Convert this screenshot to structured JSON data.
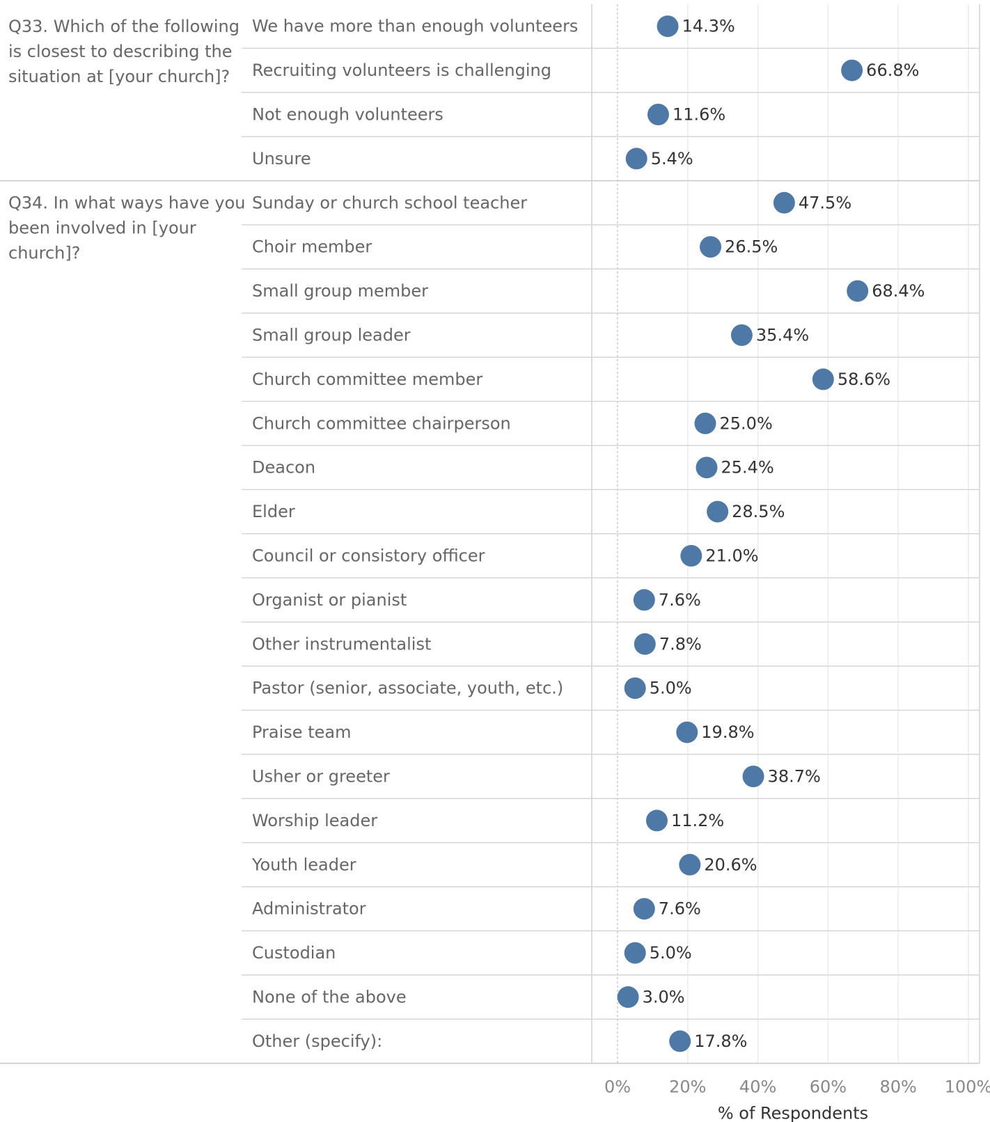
{
  "chart_data": {
    "type": "scatter",
    "orientation": "horizontal dot plot",
    "xlabel": "% of Respondents",
    "xlim": [
      0,
      100
    ],
    "x_ticks": [
      "0%",
      "20%",
      "40%",
      "60%",
      "80%",
      "100%"
    ],
    "grid": true,
    "marker_color": "#4E79A7",
    "groups": [
      {
        "question": "Q33. Which of the following is closest to describing the situation at [your church]?",
        "question_lines": [
          "Q33. Which of the following",
          "is closest to describing the",
          "situation at [your church]?"
        ],
        "categories": [
          "We have more than enough volunteers",
          "Recruiting volunteers is challenging",
          "Not enough volunteers",
          "Unsure"
        ],
        "values": [
          14.3,
          66.8,
          11.6,
          5.4
        ],
        "value_labels": [
          "14.3%",
          "66.8%",
          "11.6%",
          "5.4%"
        ]
      },
      {
        "question": "Q34. In what ways have you been involved in [your church]?",
        "question_lines": [
          "Q34. In what ways have you",
          "been involved in [your",
          "church]?"
        ],
        "categories": [
          "Sunday or church school teacher",
          "Choir member",
          "Small group member",
          "Small group leader",
          "Church committee member",
          "Church committee chairperson",
          "Deacon",
          "Elder",
          "Council or consistory officer",
          "Organist or pianist",
          "Other instrumentalist",
          "Pastor (senior, associate, youth, etc.)",
          "Praise team",
          "Usher or greeter",
          "Worship leader",
          "Youth leader",
          "Administrator",
          "Custodian",
          "None of the above",
          "Other (specify):"
        ],
        "values": [
          47.5,
          26.5,
          68.4,
          35.4,
          58.6,
          25.0,
          25.4,
          28.5,
          21.0,
          7.6,
          7.8,
          5.0,
          19.8,
          38.7,
          11.2,
          20.6,
          7.6,
          5.0,
          3.0,
          17.8
        ],
        "value_labels": [
          "47.5%",
          "26.5%",
          "68.4%",
          "35.4%",
          "58.6%",
          "25.0%",
          "25.4%",
          "28.5%",
          "21.0%",
          "7.6%",
          "7.8%",
          "5.0%",
          "19.8%",
          "38.7%",
          "11.2%",
          "20.6%",
          "7.6%",
          "5.0%",
          "3.0%",
          "17.8%"
        ]
      }
    ]
  }
}
